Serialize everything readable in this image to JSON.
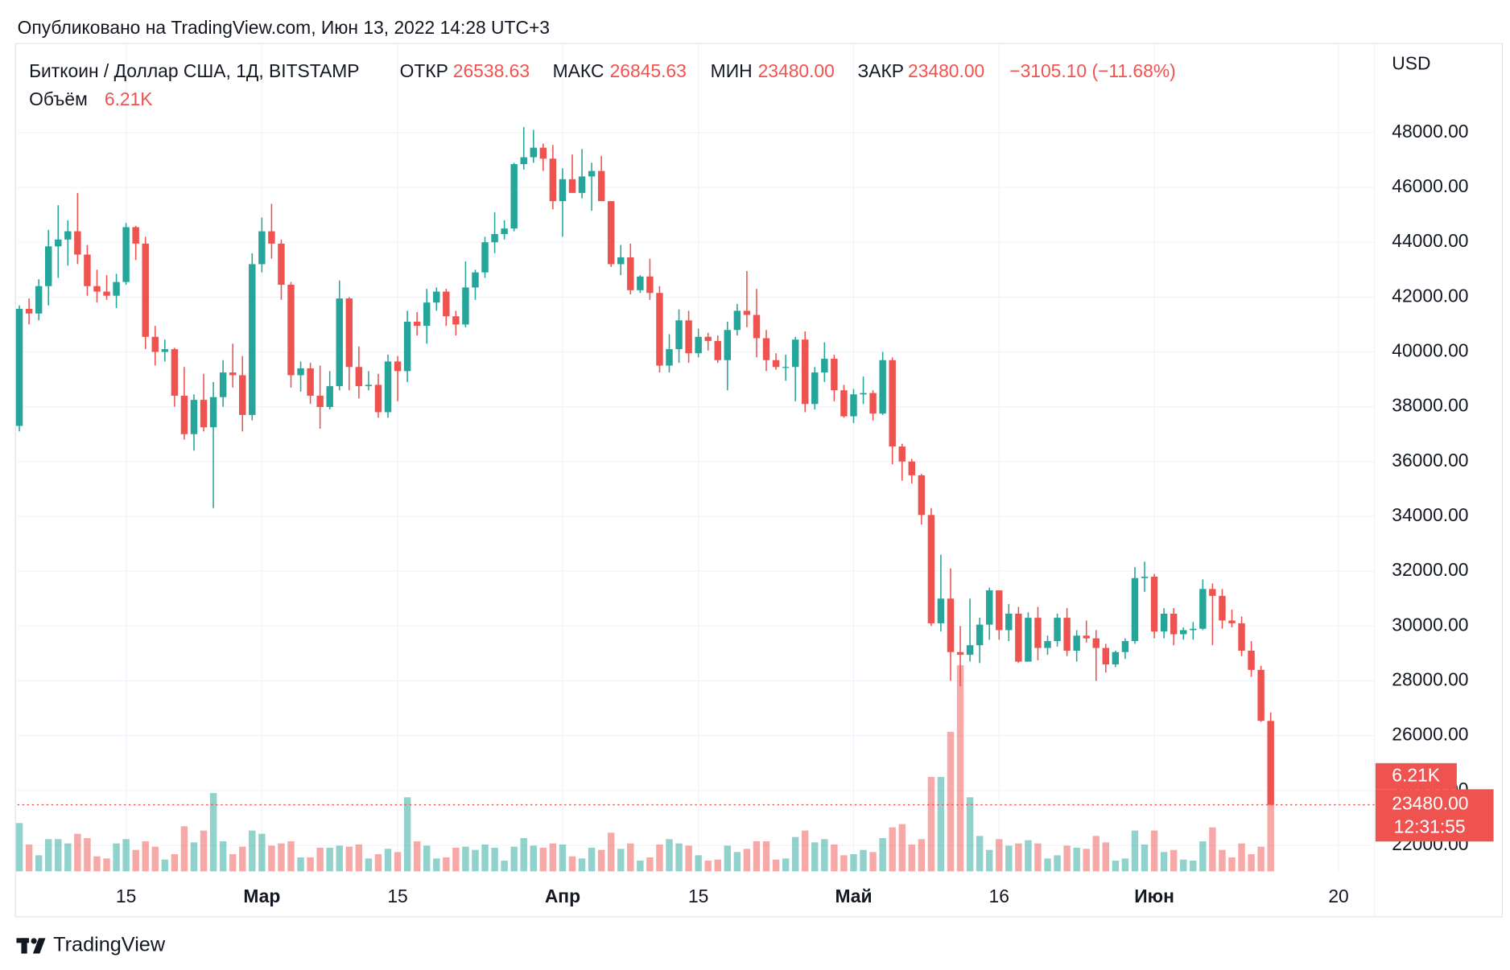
{
  "header": {
    "published": "Опубликовано на TradingView.com, Июн 13, 2022 14:28 UTC+3",
    "symbol": "Биткоин / Доллар США, 1Д, BITSTAMP",
    "open_label": "ОТКР",
    "open": "26538.63",
    "high_label": "МАКС",
    "high": "26845.63",
    "low_label": "МИН",
    "low": "23480.00",
    "close_label": "ЗАКР",
    "close": "23480.00",
    "change": "−3105.10 (−11.68%)",
    "volume_label": "Объём",
    "volume": "6.21K"
  },
  "chart_data": {
    "type": "candlestick",
    "axis_label": "USD",
    "open": [
      37300,
      41570,
      41400,
      42400,
      43850,
      44100,
      44400,
      43550,
      42400,
      42200,
      42050,
      42550,
      44550,
      43950,
      40550,
      40000,
      40100,
      38400,
      37000,
      38250,
      37250,
      38350,
      39250,
      39150,
      37700,
      43200,
      44400,
      43950,
      42450,
      39150,
      39400,
      38400,
      37990,
      38750,
      41950,
      39450,
      38750,
      38800,
      37800,
      39650,
      39300,
      41100,
      40950,
      41800,
      42200,
      41300,
      41000,
      42350,
      42900,
      44000,
      44300,
      44500,
      46850,
      47100,
      47450,
      47050,
      45500,
      46300,
      45800,
      46400,
      46600,
      45500,
      43200,
      43450,
      42250,
      42750,
      42150,
      39500,
      40100,
      41150,
      39950,
      40550,
      40400,
      39700,
      40800,
      41500,
      41350,
      40500,
      39700,
      39450,
      39450,
      40450,
      38100,
      39250,
      39750,
      38600,
      37650,
      38450,
      38500,
      37750,
      39700,
      36550,
      36000,
      35500,
      34050,
      30100,
      31000,
      29050,
      28950,
      29300,
      30050,
      31300,
      29850,
      30450,
      28700,
      30300,
      29200,
      29450,
      30300,
      29100,
      29650,
      29550,
      29200,
      28600,
      29050,
      29450,
      31750,
      31800,
      29800,
      30450,
      29700,
      29850,
      29900,
      31350,
      31100,
      30200,
      30100,
      29100,
      28400,
      26538.63
    ],
    "high": [
      41700,
      41950,
      42650,
      44450,
      45350,
      44800,
      45800,
      43900,
      43000,
      42800,
      42850,
      44700,
      44600,
      44200,
      40950,
      40450,
      40150,
      39450,
      38450,
      39200,
      38900,
      39700,
      40300,
      39850,
      43600,
      44900,
      45400,
      44100,
      42550,
      39650,
      39600,
      39500,
      39300,
      42600,
      42000,
      40200,
      39300,
      39200,
      39900,
      39850,
      41500,
      41450,
      42300,
      42350,
      42300,
      41500,
      43300,
      43000,
      44200,
      45100,
      44800,
      46900,
      48200,
      48100,
      47600,
      47550,
      46700,
      47200,
      47400,
      46900,
      47150,
      45500,
      43900,
      43950,
      42800,
      43400,
      42400,
      40650,
      41550,
      41500,
      40850,
      40700,
      40600,
      41100,
      41750,
      42950,
      42300,
      40800,
      39950,
      39900,
      40550,
      40750,
      39450,
      40350,
      39900,
      38800,
      38650,
      39100,
      38600,
      40000,
      39800,
      36650,
      36100,
      35550,
      34300,
      32600,
      32100,
      30000,
      31000,
      30300,
      31400,
      31300,
      30800,
      30700,
      30500,
      30700,
      29650,
      30450,
      30650,
      29850,
      30200,
      29850,
      29350,
      29100,
      29550,
      32150,
      32350,
      31900,
      30650,
      30650,
      29950,
      30150,
      31700,
      31550,
      31350,
      30600,
      30350,
      29450,
      28550,
      26845.63
    ],
    "low": [
      37100,
      41000,
      41150,
      41700,
      42700,
      43150,
      43200,
      42050,
      41800,
      41900,
      41600,
      42450,
      43350,
      40100,
      39500,
      39650,
      38000,
      36800,
      36400,
      37100,
      34300,
      38000,
      38700,
      37100,
      37500,
      42900,
      43400,
      41900,
      38700,
      38550,
      38100,
      37200,
      37900,
      38600,
      38600,
      38300,
      38600,
      37600,
      37600,
      38200,
      38900,
      40600,
      40300,
      41500,
      40950,
      40600,
      40900,
      41900,
      42700,
      43600,
      44100,
      44400,
      46650,
      46900,
      46600,
      45200,
      44200,
      45800,
      45600,
      45150,
      45500,
      43100,
      42800,
      42100,
      42150,
      41900,
      39250,
      39250,
      39600,
      39600,
      39800,
      40050,
      39600,
      38600,
      40600,
      40900,
      39800,
      39300,
      39350,
      38950,
      38200,
      37800,
      37900,
      38900,
      38200,
      37600,
      37400,
      38100,
      37500,
      37700,
      35900,
      35300,
      35200,
      33700,
      30000,
      29800,
      28000,
      27800,
      28700,
      28650,
      29500,
      29500,
      29450,
      28650,
      28700,
      28750,
      28950,
      29250,
      28900,
      28700,
      29400,
      28000,
      28300,
      28500,
      28800,
      29350,
      31250,
      29550,
      29550,
      29300,
      29500,
      29500,
      29850,
      29300,
      29900,
      29950,
      28900,
      28150,
      26500,
      23480
    ],
    "close": [
      41570,
      41400,
      42400,
      43850,
      44100,
      44400,
      43550,
      42400,
      42200,
      42050,
      42550,
      44550,
      43950,
      40550,
      40000,
      40100,
      38400,
      37000,
      38250,
      37250,
      38350,
      39250,
      39150,
      37700,
      43200,
      44400,
      43950,
      42450,
      39150,
      39400,
      38400,
      37990,
      38750,
      41950,
      39450,
      38750,
      38800,
      37800,
      39650,
      39300,
      41100,
      40950,
      41800,
      42200,
      41300,
      41000,
      42350,
      42900,
      44000,
      44300,
      44500,
      46850,
      47100,
      47450,
      47050,
      45500,
      46300,
      45800,
      46400,
      46600,
      45500,
      43200,
      43450,
      42250,
      42750,
      42150,
      39500,
      40100,
      41150,
      39950,
      40550,
      40400,
      39700,
      40800,
      41500,
      41350,
      40500,
      39700,
      39450,
      39450,
      40450,
      38100,
      39250,
      39750,
      38600,
      37650,
      38450,
      38500,
      37750,
      39700,
      36550,
      36000,
      35500,
      34050,
      30100,
      31000,
      29050,
      28950,
      29300,
      30050,
      31300,
      29850,
      30450,
      28700,
      30300,
      29200,
      29450,
      30300,
      29100,
      29650,
      29550,
      29200,
      28600,
      29050,
      29450,
      31750,
      31800,
      29800,
      30450,
      29700,
      29850,
      29900,
      31350,
      31100,
      30200,
      30100,
      29100,
      28400,
      26540,
      23480
    ],
    "volume": [
      4.5,
      2.5,
      1.5,
      3.0,
      3.0,
      2.6,
      3.5,
      3.1,
      1.4,
      1.2,
      2.6,
      3.0,
      2.0,
      2.8,
      2.3,
      1.1,
      1.6,
      4.2,
      2.7,
      3.8,
      7.3,
      2.8,
      1.6,
      2.3,
      3.8,
      3.5,
      2.4,
      2.6,
      2.8,
      1.3,
      1.3,
      2.2,
      2.2,
      2.4,
      2.3,
      2.5,
      1.2,
      1.6,
      2.1,
      1.8,
      6.9,
      2.8,
      2.4,
      1.2,
      1.3,
      2.2,
      2.3,
      2.0,
      2.5,
      2.2,
      1.0,
      2.3,
      3.1,
      2.4,
      2.2,
      2.6,
      2.5,
      1.4,
      1.2,
      2.2,
      2.0,
      3.6,
      2.1,
      2.6,
      1.0,
      1.3,
      2.5,
      3.0,
      2.6,
      2.4,
      1.5,
      1.0,
      1.1,
      2.4,
      1.8,
      2.1,
      2.8,
      2.8,
      1.1,
      1.2,
      3.2,
      3.8,
      2.7,
      3.0,
      2.5,
      1.5,
      1.6,
      2.0,
      1.8,
      3.1,
      4.1,
      4.4,
      2.5,
      3.0,
      8.8,
      8.8,
      13.0,
      19.2,
      6.9,
      3.3,
      2.0,
      3.0,
      2.4,
      2.6,
      2.9,
      2.6,
      1.2,
      1.5,
      2.4,
      2.2,
      2.1,
      3.3,
      2.7,
      1.0,
      1.2,
      3.8,
      2.5,
      3.8,
      1.8,
      2.0,
      1.1,
      1.0,
      2.8,
      4.1,
      2.0,
      1.3,
      2.6,
      1.6,
      2.3,
      6.21
    ],
    "up_color": "#26a69a",
    "down_color": "#ef5350",
    "ylim": [
      21050,
      51250
    ],
    "yticks": [
      {
        "value": 22000,
        "label": "22000.00"
      },
      {
        "value": 24000,
        "label": "24000.00"
      },
      {
        "value": 26000,
        "label": "26000.00"
      },
      {
        "value": 28000,
        "label": "28000.00"
      },
      {
        "value": 30000,
        "label": "30000.00"
      },
      {
        "value": 32000,
        "label": "32000.00"
      },
      {
        "value": 34000,
        "label": "34000.00"
      },
      {
        "value": 36000,
        "label": "36000.00"
      },
      {
        "value": 38000,
        "label": "38000.00"
      },
      {
        "value": 40000,
        "label": "40000.00"
      },
      {
        "value": 42000,
        "label": "42000.00"
      },
      {
        "value": 44000,
        "label": "44000.00"
      },
      {
        "value": 46000,
        "label": "46000.00"
      },
      {
        "value": 48000,
        "label": "48000.00"
      }
    ],
    "xlim": [
      -0.2,
      139.7
    ],
    "xticks": [
      {
        "value": 11,
        "label": "15"
      },
      {
        "value": 25,
        "label": "Мар"
      },
      {
        "value": 39,
        "label": "15"
      },
      {
        "value": 56,
        "label": "Апр"
      },
      {
        "value": 70,
        "label": "15"
      },
      {
        "value": 86,
        "label": "Май"
      },
      {
        "value": 101,
        "label": "16"
      },
      {
        "value": 117,
        "label": "Июн"
      },
      {
        "value": 136,
        "label": "20"
      }
    ],
    "volume_ylim": [
      0,
      40
    ],
    "last_price": {
      "value": 23480,
      "label": "23480.00"
    },
    "last_volume_label": "6.21K",
    "countdown": "12:31:55",
    "grid": true
  },
  "footer": {
    "brand": "TradingView"
  }
}
